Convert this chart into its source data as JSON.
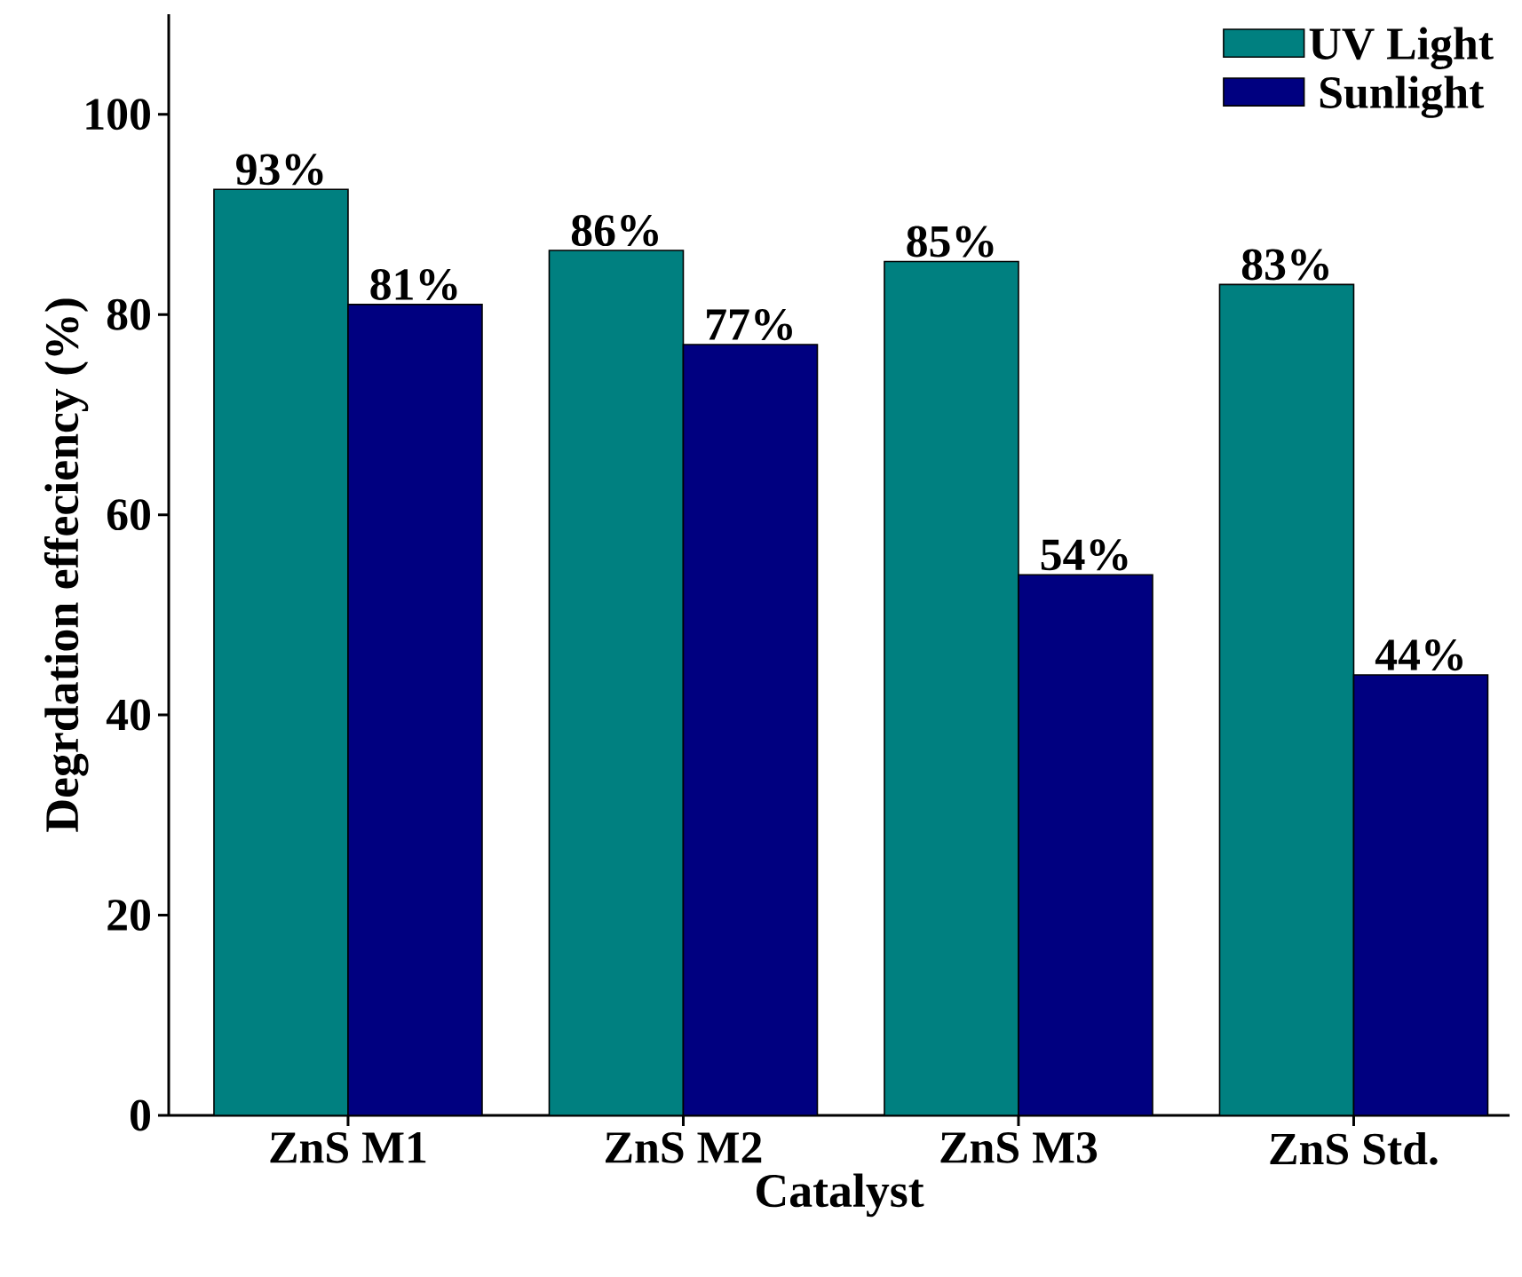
{
  "chart_data": {
    "type": "bar",
    "xlabel": "Catalyst",
    "ylabel": "Degrdation effeciency (%)",
    "categories": [
      "ZnS M1",
      "ZnS M2",
      "ZnS M3",
      "ZnS Std."
    ],
    "series": [
      {
        "name": "UV Light",
        "color": "#008080",
        "values": [
          92.5,
          86.4,
          85.3,
          83.0
        ],
        "value_labels": [
          "93%",
          "86%",
          "85%",
          "83%"
        ]
      },
      {
        "name": "Sunlight",
        "color": "#000080",
        "values": [
          81.0,
          77.0,
          54.0,
          44.0
        ],
        "value_labels": [
          "81%",
          "77%",
          "54%",
          "44%"
        ]
      }
    ],
    "ylim": [
      0,
      110
    ],
    "yticks": [
      0,
      20,
      40,
      60,
      80,
      100
    ],
    "legend": "top right",
    "grid": false
  }
}
